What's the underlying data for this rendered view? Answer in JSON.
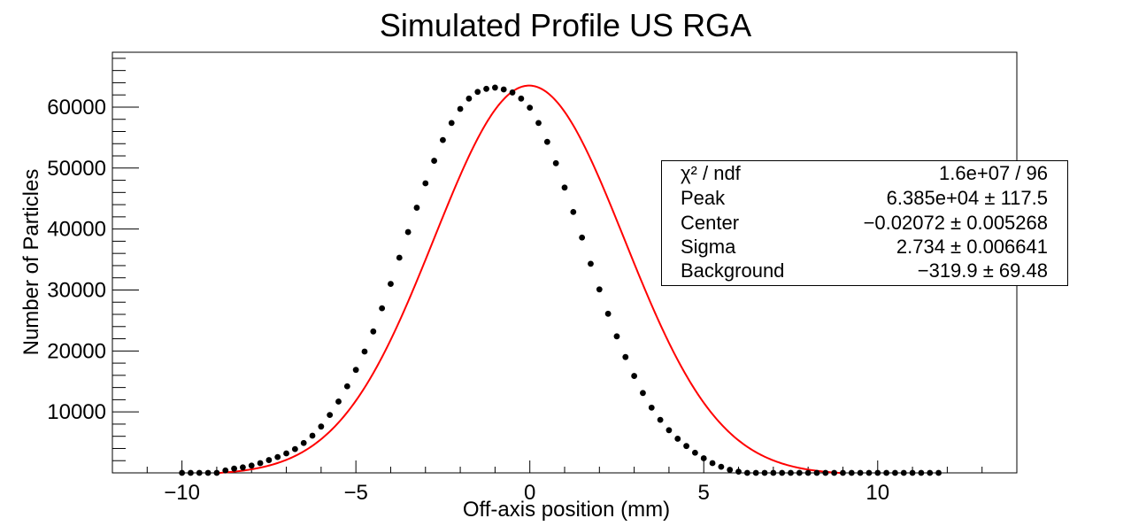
{
  "chart_data": {
    "type": "scatter",
    "title": "Simulated Profile US RGA",
    "xlabel": "Off-axis position (mm)",
    "ylabel": "Number of Particles",
    "xlim": [
      -12,
      14
    ],
    "ylim": [
      0,
      69000
    ],
    "x_ticks": [
      -10,
      -5,
      0,
      5,
      10
    ],
    "x_tick_labels": [
      "−10",
      "−5",
      "0",
      "5",
      "10"
    ],
    "y_ticks": [
      10000,
      20000,
      30000,
      40000,
      50000,
      60000
    ],
    "y_tick_labels": [
      "10000",
      "20000",
      "30000",
      "40000",
      "50000",
      "60000"
    ],
    "series": [
      {
        "type": "scatter",
        "color": "#000000",
        "x": [
          -10.0,
          -9.75,
          -9.5,
          -9.25,
          -9.0,
          -8.75,
          -8.5,
          -8.25,
          -8.0,
          -7.75,
          -7.5,
          -7.25,
          -7.0,
          -6.75,
          -6.5,
          -6.25,
          -6.0,
          -5.75,
          -5.5,
          -5.25,
          -5.0,
          -4.75,
          -4.5,
          -4.25,
          -4.0,
          -3.75,
          -3.5,
          -3.25,
          -3.0,
          -2.75,
          -2.5,
          -2.25,
          -2.0,
          -1.75,
          -1.5,
          -1.25,
          -1.0,
          -0.75,
          -0.5,
          -0.25,
          0.0,
          0.25,
          0.5,
          0.75,
          1.0,
          1.25,
          1.5,
          1.75,
          2.0,
          2.25,
          2.5,
          2.75,
          3.0,
          3.25,
          3.5,
          3.75,
          4.0,
          4.25,
          4.5,
          4.75,
          5.0,
          5.25,
          5.5,
          5.75,
          6.0,
          6.25,
          6.5,
          6.75,
          7.0,
          7.25,
          7.5,
          7.75,
          8.0,
          8.25,
          8.5,
          8.75,
          9.0,
          9.25,
          9.5,
          9.75,
          10.0,
          10.25,
          10.5,
          10.75,
          11.0,
          11.25,
          11.5,
          11.75
        ],
        "y": [
          0,
          0,
          0,
          0,
          0,
          400,
          700,
          900,
          1200,
          1600,
          2100,
          2600,
          3200,
          3900,
          4900,
          6100,
          7600,
          9500,
          11700,
          14200,
          16900,
          19900,
          23200,
          27000,
          31000,
          35300,
          39500,
          43500,
          47500,
          51200,
          54600,
          57400,
          59700,
          61400,
          62500,
          63000,
          63200,
          62900,
          62400,
          61400,
          59900,
          57400,
          54300,
          50800,
          46800,
          42800,
          38600,
          34300,
          30100,
          26100,
          22400,
          19000,
          15900,
          13100,
          10700,
          8700,
          7000,
          5600,
          4400,
          3300,
          2400,
          1600,
          1000,
          500,
          200,
          0,
          0,
          0,
          0,
          0,
          0,
          0,
          0,
          0,
          0,
          0,
          0,
          0,
          0,
          0,
          0,
          0,
          0,
          0,
          0,
          0,
          0,
          0
        ]
      },
      {
        "type": "line",
        "name": "fit",
        "color": "#ff0000",
        "model": "gaussian + constant",
        "peak": 63850,
        "center": -0.02072,
        "sigma": 2.734,
        "background": -319.9,
        "x_range": [
          -9,
          9
        ]
      }
    ],
    "stats": [
      {
        "label": "χ² / ndf",
        "value": "1.6e+07 / 96"
      },
      {
        "label": "Peak",
        "value": "6.385e+04 ± 117.5"
      },
      {
        "label": "Center",
        "value": "−0.02072 ± 0.005268"
      },
      {
        "label": "Sigma",
        "value": "2.734 ± 0.006641"
      },
      {
        "label": "Background",
        "value": "−319.9 ± 69.48"
      }
    ]
  }
}
